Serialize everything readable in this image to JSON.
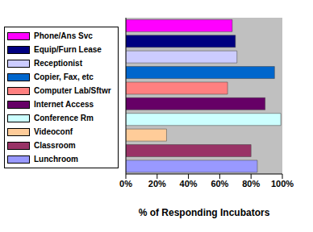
{
  "chart_data": {
    "type": "bar",
    "orientation": "horizontal",
    "categories": [
      "Phone/Ans Svc",
      "Equip/Furn Lease",
      "Receptionist",
      "Copier, Fax, etc",
      "Computer Lab/Sftwr",
      "Internet Access",
      "Conference Rm",
      "Videoconf",
      "Classroom",
      "Lunchroom"
    ],
    "values": [
      68,
      70,
      71,
      95,
      65,
      89,
      99,
      26,
      80,
      84
    ],
    "colors": [
      "#ff00ff",
      "#000080",
      "#ccccff",
      "#0066cc",
      "#ff8080",
      "#660066",
      "#ccffff",
      "#ffcc99",
      "#993366",
      "#9999ff"
    ],
    "xlabel": "% of Responding Incubators",
    "xlim": [
      0,
      100
    ],
    "xticks": [
      {
        "value": 0,
        "label": "0%"
      },
      {
        "value": 20,
        "label": "20%"
      },
      {
        "value": 40,
        "label": "40%"
      },
      {
        "value": 60,
        "label": "60%"
      },
      {
        "value": 80,
        "label": "80%"
      },
      {
        "value": 100,
        "label": "100%"
      }
    ],
    "grid": false,
    "legend": "left",
    "tick_labels": "x"
  }
}
